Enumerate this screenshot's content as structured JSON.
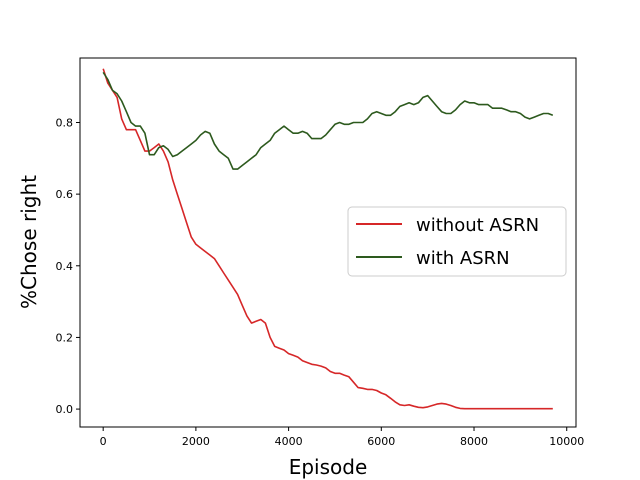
{
  "chart_data": {
    "type": "line",
    "title": "",
    "xlabel": "Episode",
    "ylabel": "%Chose right",
    "xlim": [
      -500,
      10200
    ],
    "ylim": [
      -0.05,
      0.98
    ],
    "xticks": [
      0,
      2000,
      4000,
      6000,
      8000,
      10000
    ],
    "yticks": [
      0.0,
      0.2,
      0.4,
      0.6,
      0.8
    ],
    "ytick_labels": [
      "0.0",
      "0.2",
      "0.4",
      "0.6",
      "0.8"
    ],
    "grid": false,
    "legend": {
      "placement": "center-right"
    },
    "series": [
      {
        "name": "without ASRN",
        "color": "#d62728",
        "x": [
          0,
          100,
          200,
          300,
          400,
          500,
          600,
          700,
          800,
          900,
          1000,
          1100,
          1200,
          1300,
          1400,
          1500,
          1600,
          1700,
          1800,
          1900,
          2000,
          2100,
          2200,
          2300,
          2400,
          2500,
          2600,
          2700,
          2800,
          2900,
          3000,
          3100,
          3200,
          3300,
          3400,
          3500,
          3600,
          3700,
          3800,
          3900,
          4000,
          4100,
          4200,
          4300,
          4400,
          4500,
          4600,
          4700,
          4800,
          4900,
          5000,
          5100,
          5200,
          5300,
          5400,
          5500,
          5600,
          5700,
          5800,
          5900,
          6000,
          6100,
          6200,
          6300,
          6400,
          6500,
          6600,
          6700,
          6800,
          6900,
          7000,
          7100,
          7200,
          7300,
          7400,
          7500,
          7600,
          7700,
          7800,
          7900,
          8000,
          8200,
          8400,
          8600,
          8800,
          9000,
          9200,
          9400,
          9600,
          9700
        ],
        "values": [
          0.95,
          0.91,
          0.89,
          0.87,
          0.81,
          0.78,
          0.78,
          0.78,
          0.75,
          0.72,
          0.72,
          0.73,
          0.74,
          0.72,
          0.69,
          0.64,
          0.6,
          0.56,
          0.52,
          0.48,
          0.46,
          0.45,
          0.44,
          0.43,
          0.42,
          0.4,
          0.38,
          0.36,
          0.34,
          0.32,
          0.29,
          0.26,
          0.24,
          0.245,
          0.25,
          0.24,
          0.2,
          0.175,
          0.17,
          0.165,
          0.155,
          0.15,
          0.145,
          0.135,
          0.13,
          0.125,
          0.123,
          0.12,
          0.115,
          0.105,
          0.1,
          0.1,
          0.095,
          0.09,
          0.075,
          0.06,
          0.058,
          0.055,
          0.055,
          0.052,
          0.045,
          0.04,
          0.03,
          0.02,
          0.012,
          0.01,
          0.012,
          0.008,
          0.005,
          0.004,
          0.006,
          0.01,
          0.014,
          0.016,
          0.014,
          0.01,
          0.005,
          0.002,
          0.001,
          0.001,
          0.001,
          0.001,
          0.001,
          0.001,
          0.001,
          0.001,
          0.001,
          0.001,
          0.001,
          0.001
        ]
      },
      {
        "name": "with ASRN",
        "color": "#2d5a1e",
        "x": [
          0,
          100,
          200,
          300,
          400,
          500,
          600,
          700,
          800,
          900,
          1000,
          1100,
          1200,
          1300,
          1400,
          1500,
          1600,
          1700,
          1800,
          1900,
          2000,
          2100,
          2200,
          2300,
          2400,
          2500,
          2600,
          2700,
          2800,
          2900,
          3000,
          3100,
          3200,
          3300,
          3400,
          3500,
          3600,
          3700,
          3800,
          3900,
          4000,
          4100,
          4200,
          4300,
          4400,
          4500,
          4600,
          4700,
          4800,
          4900,
          5000,
          5100,
          5200,
          5300,
          5400,
          5500,
          5600,
          5700,
          5800,
          5900,
          6000,
          6100,
          6200,
          6300,
          6400,
          6500,
          6600,
          6700,
          6800,
          6900,
          7000,
          7100,
          7200,
          7300,
          7400,
          7500,
          7600,
          7700,
          7800,
          7900,
          8000,
          8100,
          8200,
          8300,
          8400,
          8500,
          8600,
          8700,
          8800,
          8900,
          9000,
          9100,
          9200,
          9300,
          9400,
          9500,
          9600,
          9700
        ],
        "values": [
          0.94,
          0.92,
          0.89,
          0.88,
          0.86,
          0.83,
          0.8,
          0.79,
          0.79,
          0.77,
          0.71,
          0.71,
          0.73,
          0.735,
          0.725,
          0.705,
          0.71,
          0.72,
          0.73,
          0.74,
          0.75,
          0.765,
          0.775,
          0.77,
          0.74,
          0.72,
          0.71,
          0.7,
          0.67,
          0.67,
          0.68,
          0.69,
          0.7,
          0.71,
          0.73,
          0.74,
          0.75,
          0.77,
          0.78,
          0.79,
          0.78,
          0.77,
          0.77,
          0.775,
          0.77,
          0.755,
          0.755,
          0.755,
          0.765,
          0.78,
          0.795,
          0.8,
          0.795,
          0.795,
          0.8,
          0.8,
          0.8,
          0.81,
          0.825,
          0.83,
          0.825,
          0.82,
          0.82,
          0.83,
          0.845,
          0.85,
          0.855,
          0.85,
          0.855,
          0.87,
          0.875,
          0.86,
          0.845,
          0.83,
          0.825,
          0.825,
          0.835,
          0.85,
          0.86,
          0.855,
          0.855,
          0.85,
          0.85,
          0.85,
          0.84,
          0.84,
          0.84,
          0.835,
          0.83,
          0.83,
          0.825,
          0.815,
          0.81,
          0.815,
          0.82,
          0.825,
          0.825,
          0.82
        ]
      }
    ]
  }
}
